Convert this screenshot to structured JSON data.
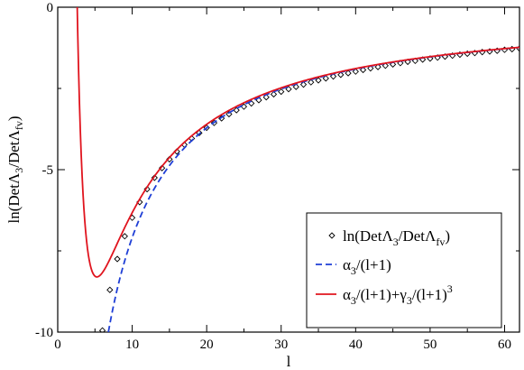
{
  "chart_data": {
    "type": "line",
    "xlabel": "l",
    "ylabel": {
      "pre": "ln(Det",
      "lambda": "Λ",
      "sub3": "3",
      "mid": "/Det",
      "lambda2": "Λ",
      "subfv": "fv",
      "post": ")"
    },
    "xlim": [
      0,
      62
    ],
    "ylim": [
      -10,
      0
    ],
    "x_ticks": [
      0,
      10,
      20,
      30,
      40,
      50,
      60
    ],
    "y_ticks": [
      0,
      -5,
      -10
    ],
    "grid": false,
    "legend_position": "bottom-right",
    "legend": [
      {
        "kind": "markers",
        "parts": [
          {
            "t": "ln(Det",
            "s": "n"
          },
          {
            "t": "Λ",
            "s": "n"
          },
          {
            "t": "3",
            "s": "sub"
          },
          {
            "t": "/Det",
            "s": "n"
          },
          {
            "t": "Λ",
            "s": "n"
          },
          {
            "t": "fv",
            "s": "sub"
          },
          {
            "t": ")",
            "s": "n"
          }
        ]
      },
      {
        "kind": "dashed",
        "parts": [
          {
            "t": "α",
            "s": "n"
          },
          {
            "t": "3",
            "s": "sub"
          },
          {
            "t": "/(l+1)",
            "s": "n"
          }
        ]
      },
      {
        "kind": "solid",
        "parts": [
          {
            "t": "α",
            "s": "n"
          },
          {
            "t": "3",
            "s": "sub"
          },
          {
            "t": "/(l+1)+γ",
            "s": "n"
          },
          {
            "t": "3",
            "s": "sub"
          },
          {
            "t": "/(l+1)",
            "s": "n"
          },
          {
            "t": "3",
            "s": "sup"
          }
        ]
      }
    ],
    "series": [
      {
        "style": "markers",
        "color": "#000000",
        "x": [
          6,
          7,
          8,
          9,
          10,
          11,
          12,
          13,
          14,
          15,
          16,
          17,
          18,
          19,
          20,
          21,
          22,
          23,
          24,
          25,
          26,
          27,
          28,
          29,
          30,
          31,
          32,
          33,
          34,
          35,
          36,
          37,
          38,
          39,
          40,
          41,
          42,
          43,
          44,
          45,
          46,
          47,
          48,
          49,
          50,
          51,
          52,
          53,
          54,
          55,
          56,
          57,
          58,
          59,
          60,
          61,
          62
        ],
        "y": [
          -9.95,
          -8.7,
          -7.75,
          -7.05,
          -6.48,
          -6.0,
          -5.6,
          -5.25,
          -4.95,
          -4.68,
          -4.44,
          -4.23,
          -4.04,
          -3.87,
          -3.71,
          -3.56,
          -3.42,
          -3.29,
          -3.17,
          -3.06,
          -2.96,
          -2.86,
          -2.77,
          -2.68,
          -2.6,
          -2.52,
          -2.45,
          -2.38,
          -2.31,
          -2.25,
          -2.19,
          -2.13,
          -2.08,
          -2.03,
          -1.98,
          -1.93,
          -1.88,
          -1.84,
          -1.8,
          -1.76,
          -1.72,
          -1.68,
          -1.65,
          -1.61,
          -1.58,
          -1.55,
          -1.52,
          -1.49,
          -1.46,
          -1.43,
          -1.41,
          -1.38,
          -1.36,
          -1.34,
          -1.31,
          -1.29,
          -1.27
        ]
      },
      {
        "style": "dashed",
        "color": "#1f3fd6",
        "formula": "alpha/(l+1)",
        "alpha": -78,
        "x_range": [
          6.8,
          62
        ]
      },
      {
        "style": "solid",
        "color": "#e0141e",
        "formula": "alpha/(l+1)+gamma/(l+1)^3",
        "alpha": -78,
        "gamma": 1020,
        "x_range": [
          2.2,
          62
        ]
      }
    ]
  }
}
